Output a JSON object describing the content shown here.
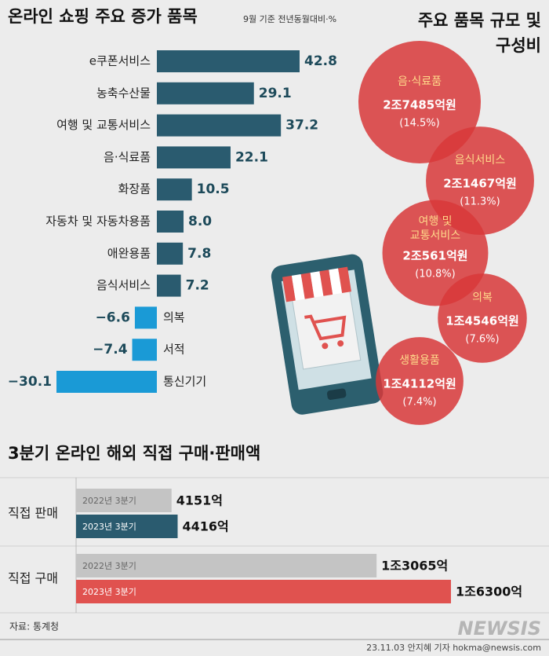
{
  "chart_data": [
    {
      "type": "bar",
      "title": "온라인 쇼핑 주요 증가 품목",
      "subtitle": "9월 기준 전년동월대비·%",
      "categories": [
        "e쿠폰서비스",
        "농축수산물",
        "여행 및 교통서비스",
        "음·식료품",
        "화장품",
        "자동차 및 자동차용품",
        "애완용품",
        "음식서비스",
        "의복",
        "서적",
        "통신기기"
      ],
      "values": [
        42.8,
        29.1,
        37.2,
        22.1,
        10.5,
        8.0,
        7.8,
        7.2,
        -6.6,
        -7.4,
        -30.1
      ],
      "value_labels": [
        "42.8",
        "29.1",
        "37.2",
        "22.1",
        "10.5",
        "8.0",
        "7.8",
        "7.2",
        "−6.6",
        "−7.4",
        "−30.1"
      ],
      "color": "#2a5b6f",
      "negative_color": "#1a9ad6"
    },
    {
      "type": "bubble",
      "title": "주요 품목 규모 및 구성비",
      "categories": [
        "음·식료품",
        "음식서비스",
        "여행 및 교통서비스",
        "의복",
        "생활용품"
      ],
      "values": [
        27485,
        21467,
        20561,
        14546,
        14112
      ],
      "value_labels": [
        "2조7485억원",
        "2조1467억원",
        "2조561억원",
        "1조4546억원",
        "1조4112억원"
      ],
      "shares": [
        14.5,
        11.3,
        10.8,
        7.6,
        7.4
      ],
      "share_labels": [
        "(14.5%)",
        "(11.3%)",
        "(10.8%)",
        "(7.6%)",
        "(7.4%)"
      ],
      "color": "#d8383a"
    },
    {
      "type": "bar",
      "title": "3분기 온라인 해외 직접 구매·판매액",
      "categories": [
        "직접 판매",
        "직접 구매"
      ],
      "series": [
        {
          "name": "2022년 3분기",
          "colors": [
            "#c4c4c4",
            "#c4c4c4"
          ],
          "values": [
            4151,
            13065
          ],
          "value_labels": [
            "4151억",
            "1조3065억"
          ]
        },
        {
          "name": "2023년 3분기",
          "colors": [
            "#2a5b6f",
            "#e0524f"
          ],
          "values": [
            4416,
            16300
          ],
          "value_labels": [
            "4416억",
            "1조6300억"
          ]
        }
      ]
    }
  ],
  "source": "자료: 통계청",
  "credit": "23.11.03 안지혜 기자 hokma@newsis.com",
  "logo": "NEWSIS"
}
